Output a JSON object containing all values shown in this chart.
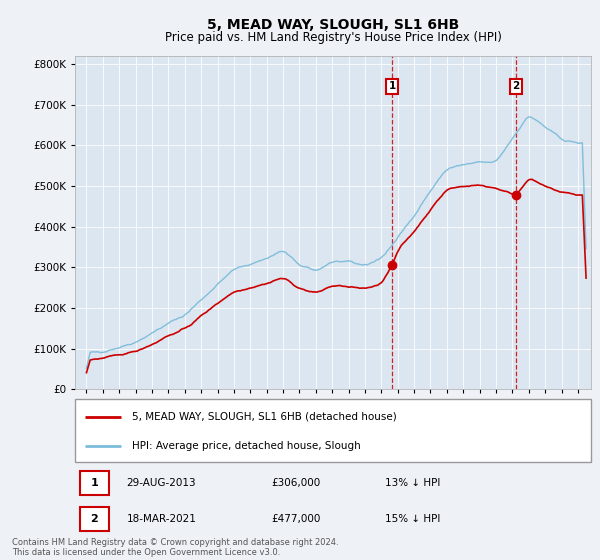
{
  "title": "5, MEAD WAY, SLOUGH, SL1 6HB",
  "subtitle": "Price paid vs. HM Land Registry's House Price Index (HPI)",
  "footer": "Contains HM Land Registry data © Crown copyright and database right 2024.\nThis data is licensed under the Open Government Licence v3.0.",
  "legend_line1": "5, MEAD WAY, SLOUGH, SL1 6HB (detached house)",
  "legend_line2": "HPI: Average price, detached house, Slough",
  "sale1_date": "29-AUG-2013",
  "sale1_price": "£306,000",
  "sale1_pct": "13% ↓ HPI",
  "sale2_date": "18-MAR-2021",
  "sale2_price": "£477,000",
  "sale2_pct": "15% ↓ HPI",
  "sale1_year": 2013.66,
  "sale1_value": 306000,
  "sale2_year": 2021.21,
  "sale2_value": 477000,
  "ylim": [
    0,
    820000
  ],
  "yticks": [
    0,
    100000,
    200000,
    300000,
    400000,
    500000,
    600000,
    700000,
    800000
  ],
  "background_color": "#eef2f7",
  "plot_bg_color": "#dce6f0",
  "red_color": "#cc0000",
  "blue_color": "#7bbcda",
  "vline_color": "#cc0000",
  "title_fontsize": 10,
  "subtitle_fontsize": 8.5,
  "xlim_left": 1994.3,
  "xlim_right": 2025.8
}
